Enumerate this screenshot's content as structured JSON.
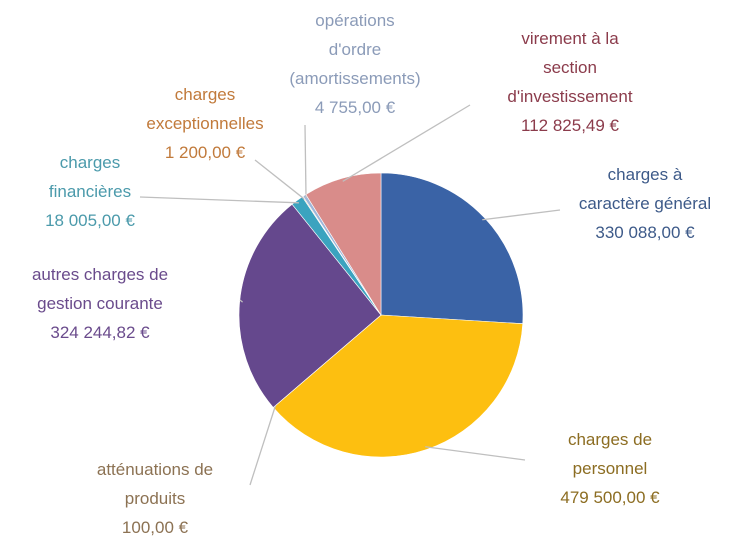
{
  "chart_data": {
    "type": "pie",
    "categories": [
      "charges à\ncaractère général",
      "charges de\npersonnel",
      "atténuations de\nproduits",
      "autres charges de\ngestion courante",
      "charges\nfinancières",
      "charges\nexceptionnelles",
      "opérations\nd'ordre\n(amortissements)",
      "virement à la\nsection\nd'investissement"
    ],
    "values": [
      330088,
      479500,
      100,
      324244.82,
      18005,
      1200,
      4755,
      112825.49
    ],
    "value_labels": [
      "330 088,00 €",
      "479 500,00 €",
      "100,00 €",
      "324 244,82 €",
      "18 005,00 €",
      "1 200,00 €",
      "4 755,00 €",
      "112 825,49 €"
    ],
    "colors": [
      "#3a63a6",
      "#fdbf10",
      "#a5a5a5",
      "#65488d",
      "#3ba3bf",
      "#e58a3c",
      "#9fb6d9",
      "#d98c8a"
    ],
    "label_colors": [
      "#3d5a89",
      "#8c6d22",
      "#8c7253",
      "#6a4b8c",
      "#4b9aab",
      "#c17a3b",
      "#8b9bb8",
      "#8b3b4b"
    ]
  }
}
